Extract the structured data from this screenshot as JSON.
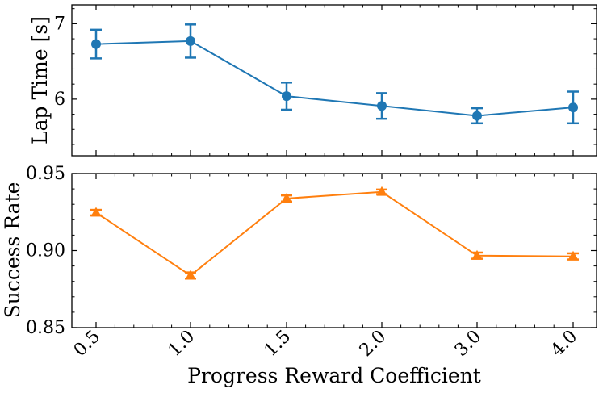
{
  "chart_data": [
    {
      "type": "line",
      "title": "",
      "xlabel": "",
      "ylabel": "Lap Time [s]",
      "categories": [
        "0.5",
        "1.0",
        "1.5",
        "2.0",
        "3.0",
        "4.0"
      ],
      "ylim": [
        5.25,
        7.25
      ],
      "yticks": [
        6,
        7
      ],
      "grid": false,
      "series": [
        {
          "name": "Lap Time",
          "color": "#1f77b4",
          "marker": "circle",
          "values": [
            6.73,
            6.77,
            6.04,
            5.91,
            5.78,
            5.89
          ],
          "errors": [
            0.19,
            0.22,
            0.18,
            0.17,
            0.1,
            0.21
          ]
        }
      ]
    },
    {
      "type": "line",
      "title": "",
      "xlabel": "Progress Reward Coefficient",
      "ylabel": "Success Rate",
      "categories": [
        "0.5",
        "1.0",
        "1.5",
        "2.0",
        "3.0",
        "4.0"
      ],
      "ylim": [
        0.85,
        0.95
      ],
      "yticks": [
        0.85,
        0.9,
        0.95
      ],
      "ytick_labels": [
        "0.85",
        "0.90",
        "0.95"
      ],
      "grid": false,
      "series": [
        {
          "name": "Success Rate",
          "color": "#ff7f0e",
          "marker": "triangle",
          "values": [
            0.9246,
            0.8838,
            0.9338,
            0.9381,
            0.8967,
            0.8962
          ],
          "errors": [
            0.0018,
            0.002,
            0.002,
            0.0015,
            0.002,
            0.002
          ]
        }
      ]
    }
  ]
}
